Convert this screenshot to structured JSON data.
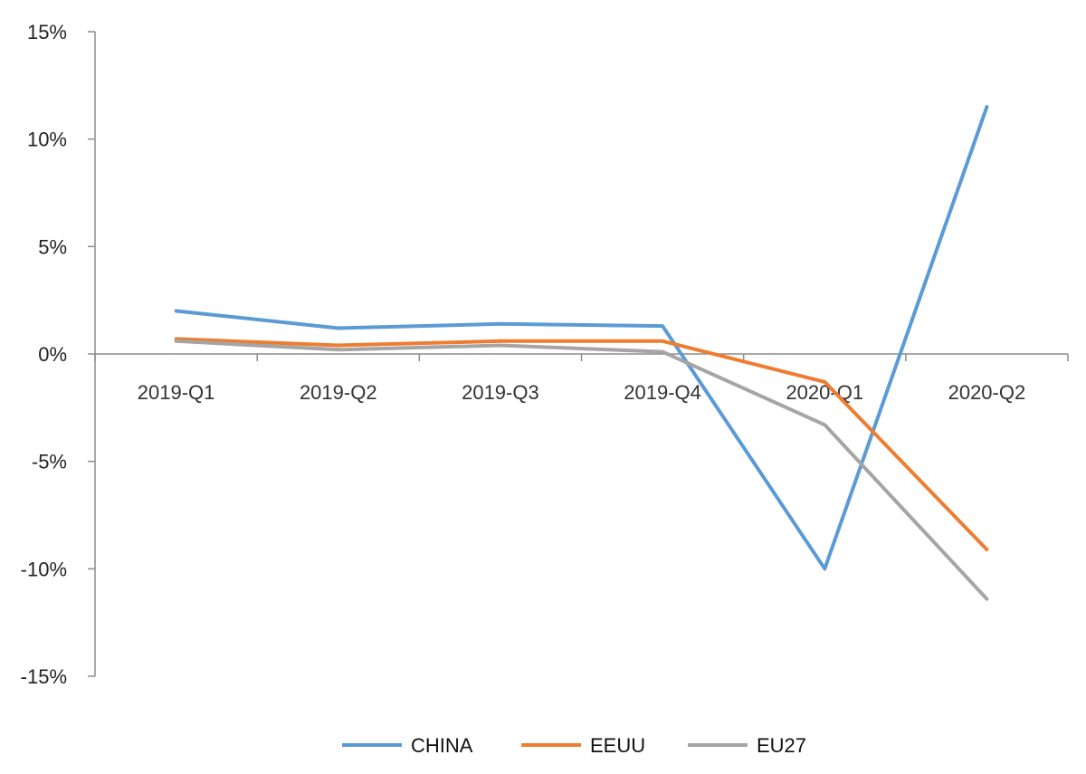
{
  "chart_data": {
    "type": "line",
    "categories": [
      "2019-Q1",
      "2019-Q2",
      "2019-Q3",
      "2019-Q4",
      "2020-Q1",
      "2020-Q2"
    ],
    "series": [
      {
        "name": "CHINA",
        "color": "#5b9bd5",
        "values": [
          2.0,
          1.2,
          1.4,
          1.3,
          -10.0,
          11.5
        ]
      },
      {
        "name": "EEUU",
        "color": "#ed7d31",
        "values": [
          0.7,
          0.4,
          0.6,
          0.6,
          -1.3,
          -9.1
        ]
      },
      {
        "name": "EU27",
        "color": "#a5a5a5",
        "values": [
          0.6,
          0.2,
          0.4,
          0.1,
          -3.3,
          -11.4
        ]
      }
    ],
    "yticks": [
      "15%",
      "10%",
      "5%",
      "0%",
      "-5%",
      "-10%",
      "-15%"
    ],
    "ylim": [
      -15,
      15
    ],
    "ytick_step": 5,
    "grid": false,
    "legend_position": "bottom"
  }
}
